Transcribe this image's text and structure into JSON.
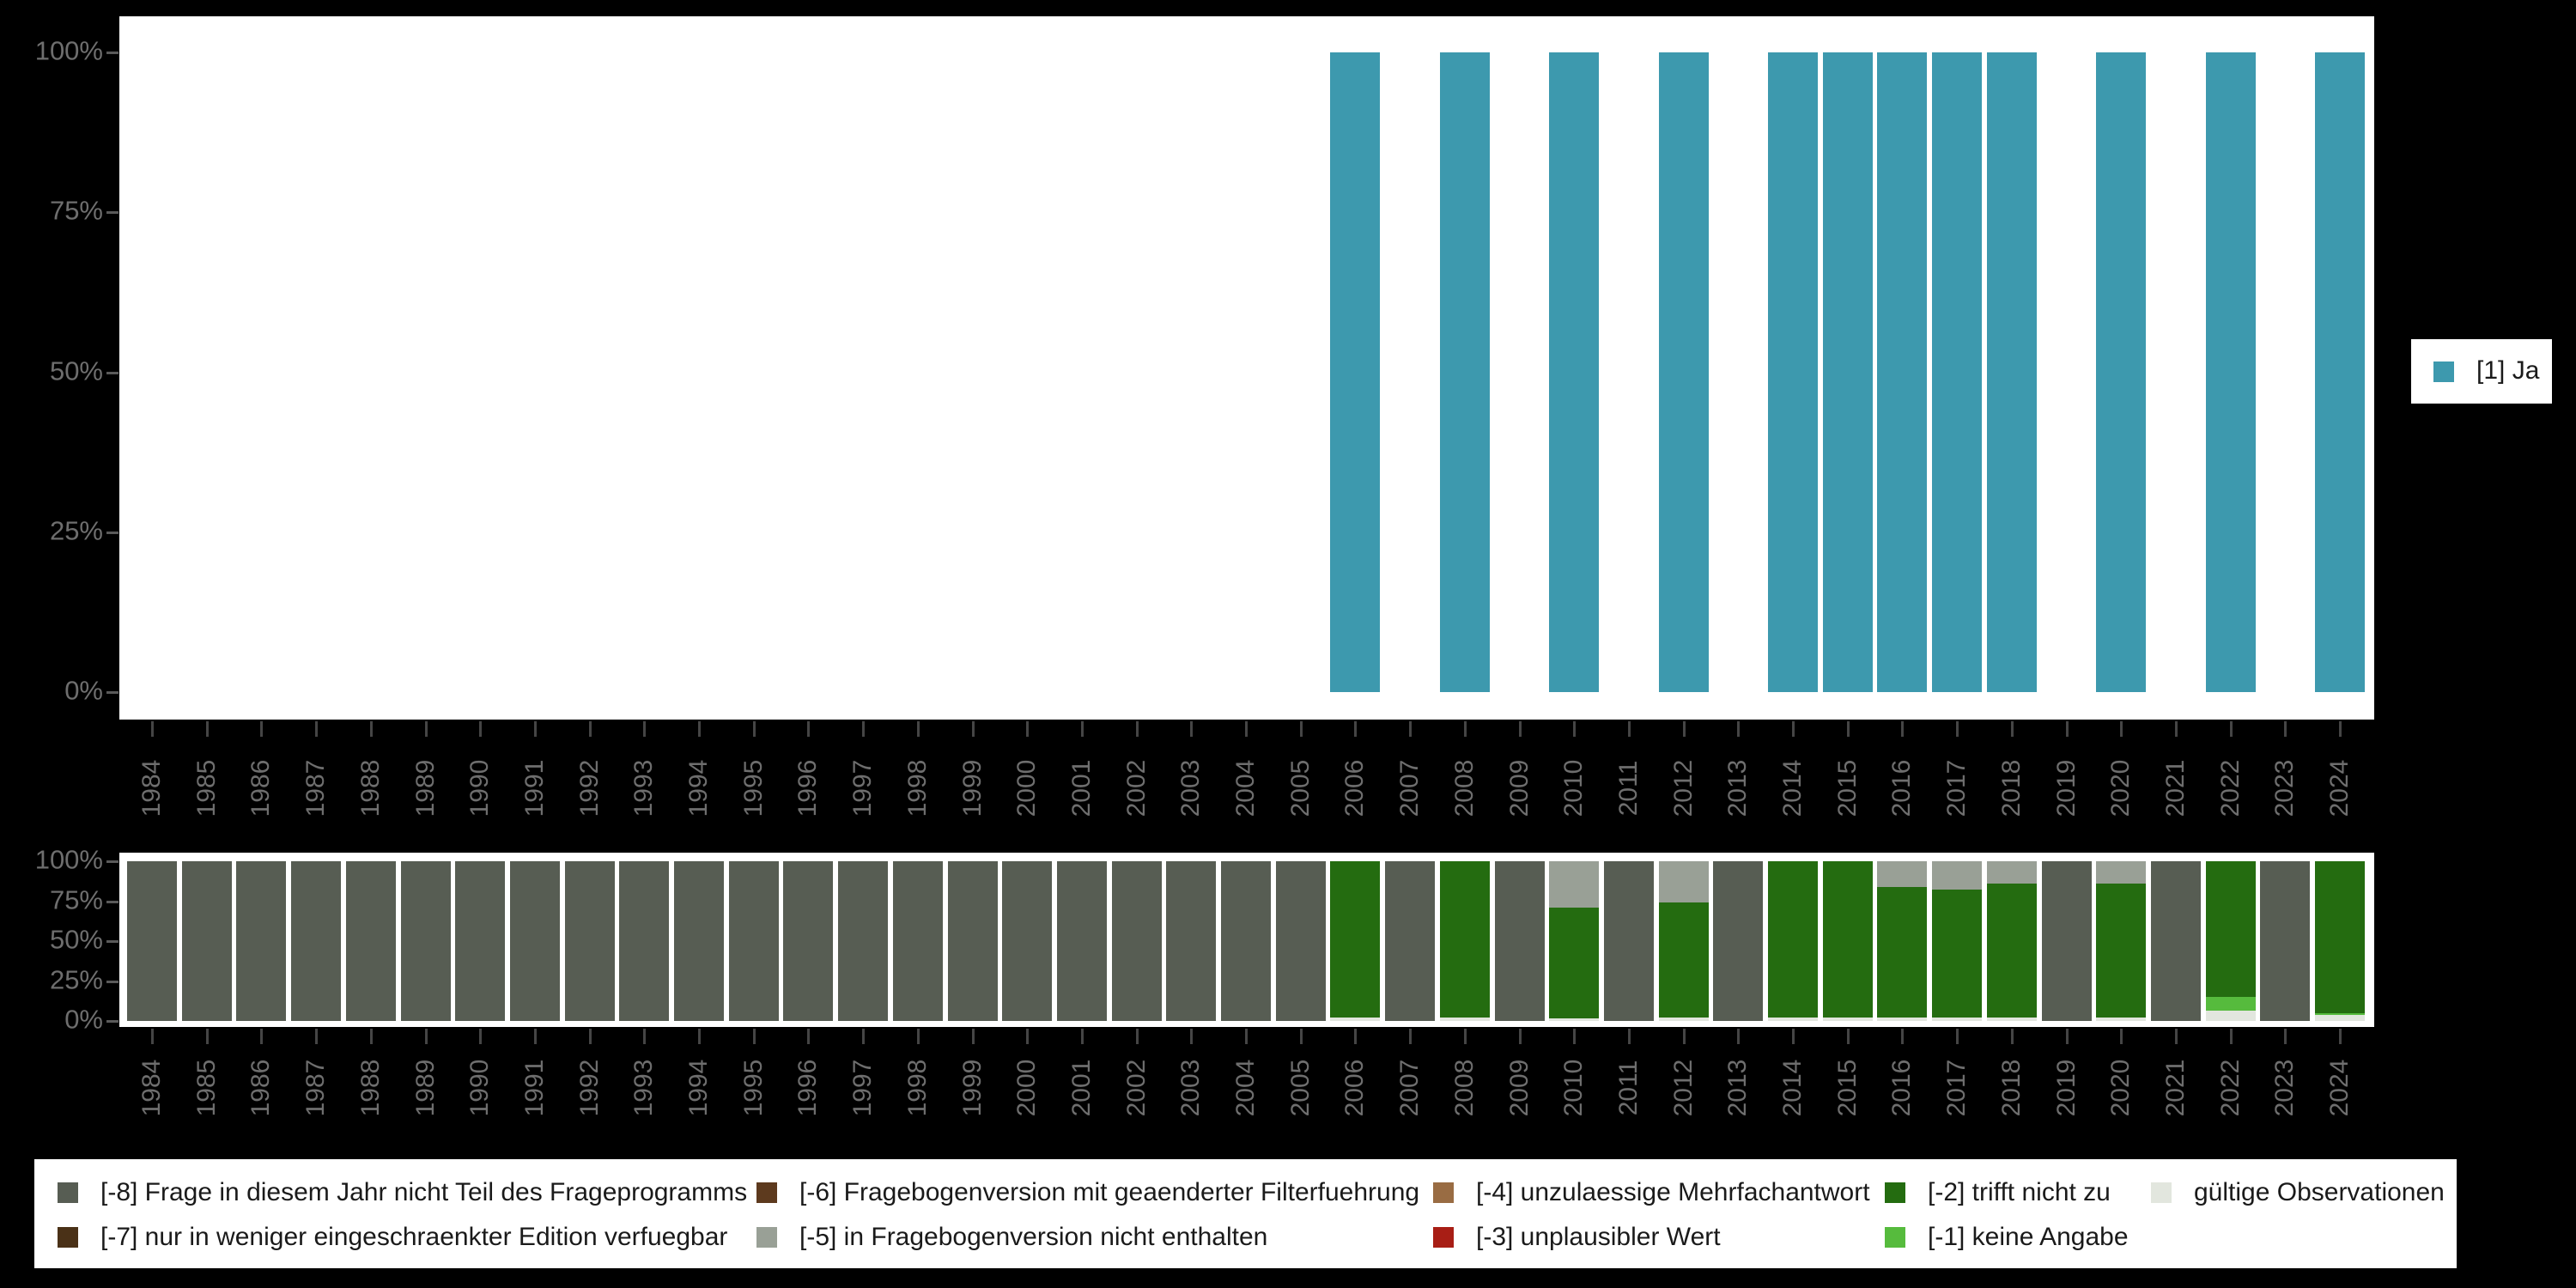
{
  "colors": {
    "background": "#000000",
    "plot_background": "#ffffff",
    "axis_text": "#6e6e6e",
    "legend_text": "#1a1a1a",
    "ja_teal": "#3D99AE",
    "code_m8_gray": "#575D53",
    "code_m7_darkbrown": "#4A3117",
    "code_m6_brown": "#5D3A1E",
    "code_m5_gray": "#99A096",
    "code_m4_tan": "#996C43",
    "code_m3_red": "#A81E15",
    "code_m2_darkgreen": "#246C10",
    "code_m1_lightgreen": "#56BB3D",
    "valid_light": "#E2E6DE"
  },
  "top_chart": {
    "y_tick_labels": [
      "100%",
      "75%",
      "50%",
      "25%",
      "0%"
    ],
    "legend": {
      "label": "[1] Ja",
      "color": "#3D99AE"
    }
  },
  "bottom_chart": {
    "y_tick_labels": [
      "100%",
      "75%",
      "50%",
      "25%",
      "0%"
    ]
  },
  "legend_bottom": [
    {
      "label": "[-8] Frage in diesem Jahr nicht Teil des Frageprogramms",
      "color": "#575D53"
    },
    {
      "label": "[-7] nur in weniger eingeschraenkter Edition verfuegbar",
      "color": "#4A3117"
    },
    {
      "label": "[-6] Fragebogenversion mit geaenderter Filterfuehrung",
      "color": "#5D3A1E"
    },
    {
      "label": "[-5] in Fragebogenversion nicht enthalten",
      "color": "#99A096"
    },
    {
      "label": "[-4] unzulaessige Mehrfachantwort",
      "color": "#996C43"
    },
    {
      "label": "[-3] unplausibler Wert",
      "color": "#A81E15"
    },
    {
      "label": "[-2] trifft nicht zu",
      "color": "#246C10"
    },
    {
      "label": "[-1] keine Angabe",
      "color": "#56BB3D"
    },
    {
      "label": "gültige Observationen",
      "color": "#E2E6DE"
    }
  ],
  "chart_data": [
    {
      "type": "bar",
      "title": "",
      "xlabel": "",
      "ylabel": "",
      "ylim": [
        0,
        100
      ],
      "y_tick_labels": [
        "0%",
        "25%",
        "50%",
        "75%",
        "100%"
      ],
      "legend_position": "right",
      "grid": false,
      "categories": [
        1984,
        1985,
        1986,
        1987,
        1988,
        1989,
        1990,
        1991,
        1992,
        1993,
        1994,
        1995,
        1996,
        1997,
        1998,
        1999,
        2000,
        2001,
        2002,
        2003,
        2004,
        2005,
        2006,
        2007,
        2008,
        2009,
        2010,
        2011,
        2012,
        2013,
        2014,
        2015,
        2016,
        2017,
        2018,
        2019,
        2020,
        2021,
        2022,
        2023,
        2024
      ],
      "series": [
        {
          "name": "[1] Ja",
          "color": "#3D99AE",
          "values": [
            0,
            0,
            0,
            0,
            0,
            0,
            0,
            0,
            0,
            0,
            0,
            0,
            0,
            0,
            0,
            0,
            0,
            0,
            0,
            0,
            0,
            0,
            100,
            0,
            100,
            0,
            100,
            0,
            100,
            0,
            100,
            100,
            100,
            100,
            100,
            0,
            100,
            0,
            100,
            0,
            100
          ]
        }
      ]
    },
    {
      "type": "stacked-bar",
      "title": "",
      "xlabel": "",
      "ylabel": "",
      "ylim": [
        0,
        100
      ],
      "y_tick_labels": [
        "0%",
        "25%",
        "50%",
        "75%",
        "100%"
      ],
      "legend_position": "bottom",
      "grid": false,
      "categories": [
        1984,
        1985,
        1986,
        1987,
        1988,
        1989,
        1990,
        1991,
        1992,
        1993,
        1994,
        1995,
        1996,
        1997,
        1998,
        1999,
        2000,
        2001,
        2002,
        2003,
        2004,
        2005,
        2006,
        2007,
        2008,
        2009,
        2010,
        2011,
        2012,
        2013,
        2014,
        2015,
        2016,
        2017,
        2018,
        2019,
        2020,
        2021,
        2022,
        2023,
        2024
      ],
      "series": [
        {
          "name": "gültige Observationen",
          "color": "#E2E6DE",
          "values": [
            0,
            0,
            0,
            0,
            0,
            0,
            0,
            0,
            0,
            0,
            0,
            0,
            0,
            0,
            0,
            0,
            0,
            0,
            0,
            0,
            0,
            0,
            2,
            0,
            2,
            0,
            1.5,
            0,
            2,
            0,
            2,
            2,
            2,
            2,
            2,
            0,
            2,
            0,
            6.5,
            0,
            3.5
          ]
        },
        {
          "name": "[-1] keine Angabe",
          "color": "#56BB3D",
          "values": [
            0,
            0,
            0,
            0,
            0,
            0,
            0,
            0,
            0,
            0,
            0,
            0,
            0,
            0,
            0,
            0,
            0,
            0,
            0,
            0,
            0,
            0,
            0,
            0,
            0,
            0,
            0,
            0,
            0,
            0,
            0,
            0,
            0,
            0,
            0,
            0,
            0,
            0,
            8.5,
            0,
            1.5
          ]
        },
        {
          "name": "[-2] trifft nicht zu",
          "color": "#246C10",
          "values": [
            0,
            0,
            0,
            0,
            0,
            0,
            0,
            0,
            0,
            0,
            0,
            0,
            0,
            0,
            0,
            0,
            0,
            0,
            0,
            0,
            0,
            0,
            98,
            0,
            98,
            0,
            69.5,
            0,
            72,
            0,
            98,
            98,
            82,
            80,
            84,
            0,
            84,
            0,
            85,
            0,
            95
          ]
        },
        {
          "name": "[-5] in Fragebogenversion nicht enthalten",
          "color": "#99A096",
          "values": [
            0,
            0,
            0,
            0,
            0,
            0,
            0,
            0,
            0,
            0,
            0,
            0,
            0,
            0,
            0,
            0,
            0,
            0,
            0,
            0,
            0,
            0,
            0,
            0,
            0,
            0,
            29,
            0,
            26,
            0,
            0,
            0,
            16,
            18,
            14,
            0,
            14,
            0,
            0,
            0,
            0
          ]
        },
        {
          "name": "[-8] Frage in diesem Jahr nicht Teil des Frageprogramms",
          "color": "#575D53",
          "values": [
            100,
            100,
            100,
            100,
            100,
            100,
            100,
            100,
            100,
            100,
            100,
            100,
            100,
            100,
            100,
            100,
            100,
            100,
            100,
            100,
            100,
            100,
            0,
            100,
            0,
            100,
            0,
            100,
            0,
            100,
            0,
            0,
            0,
            0,
            0,
            100,
            0,
            100,
            0,
            100,
            0
          ]
        }
      ]
    }
  ]
}
